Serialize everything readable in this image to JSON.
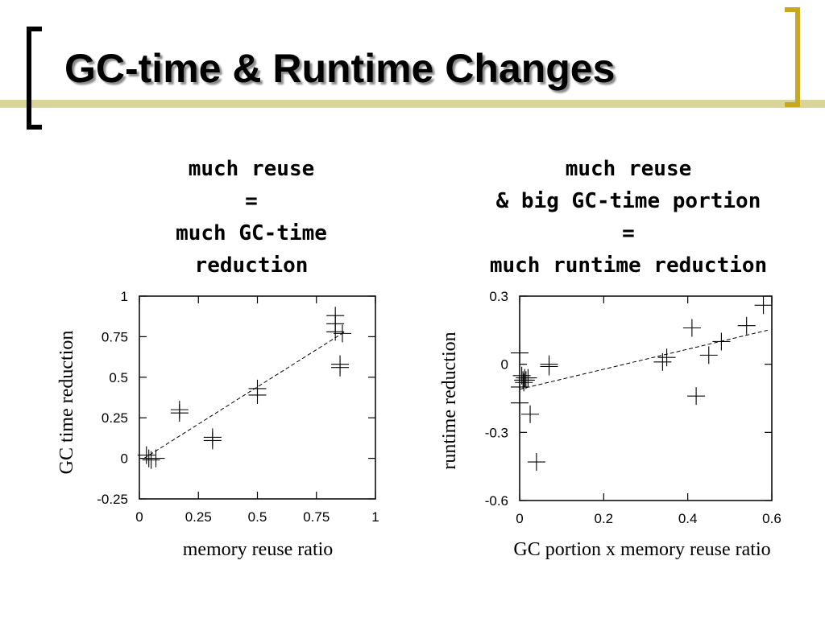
{
  "slide": {
    "title": "GC-time & Runtime Changes",
    "accent_color": "#c8a820",
    "rule_color": "#d8d49a"
  },
  "captions": {
    "left": [
      "much reuse",
      "=",
      "much GC-time",
      "reduction"
    ],
    "right": [
      "much reuse",
      "& big GC-time portion",
      "=",
      "much runtime reduction"
    ]
  },
  "chart_data": [
    {
      "type": "scatter",
      "xlabel": "memory reuse ratio",
      "ylabel": "GC time reduction",
      "xlim": [
        0,
        1
      ],
      "ylim": [
        -0.25,
        1
      ],
      "xticks": [
        0,
        0.25,
        0.5,
        0.75,
        1
      ],
      "xtick_labels": [
        "0",
        "0.25",
        "0.5",
        "0.75",
        "1"
      ],
      "yticks": [
        -0.25,
        0,
        0.25,
        0.5,
        0.75,
        1
      ],
      "ytick_labels": [
        "-0.25",
        "0",
        "0.25",
        "0.5",
        "0.75",
        "1"
      ],
      "points": [
        {
          "x": 0.03,
          "y": 0.02
        },
        {
          "x": 0.04,
          "y": 0.0
        },
        {
          "x": 0.05,
          "y": -0.01
        },
        {
          "x": 0.07,
          "y": 0.0
        },
        {
          "x": 0.17,
          "y": 0.3
        },
        {
          "x": 0.17,
          "y": 0.28
        },
        {
          "x": 0.31,
          "y": 0.13
        },
        {
          "x": 0.31,
          "y": 0.11
        },
        {
          "x": 0.5,
          "y": 0.43
        },
        {
          "x": 0.5,
          "y": 0.39
        },
        {
          "x": 0.83,
          "y": 0.88
        },
        {
          "x": 0.83,
          "y": 0.83
        },
        {
          "x": 0.83,
          "y": 0.78
        },
        {
          "x": 0.86,
          "y": 0.77
        },
        {
          "x": 0.85,
          "y": 0.58
        },
        {
          "x": 0.85,
          "y": 0.56
        }
      ],
      "fit_line": {
        "x": [
          0.02,
          0.87
        ],
        "y": [
          0.0,
          0.78
        ]
      },
      "grid": false,
      "legend": "none"
    },
    {
      "type": "scatter",
      "xlabel": "GC portion x memory reuse ratio",
      "ylabel": "runtime reduction",
      "xlim": [
        0,
        0.6
      ],
      "ylim": [
        -0.6,
        0.3
      ],
      "xticks": [
        0,
        0.2,
        0.4,
        0.6
      ],
      "xtick_labels": [
        "0",
        "0.2",
        "0.4",
        "0.6"
      ],
      "yticks": [
        -0.6,
        -0.3,
        0,
        0.3
      ],
      "ytick_labels": [
        "-0.6",
        "-0.3",
        "0",
        "0.3"
      ],
      "points": [
        {
          "x": 0.0,
          "y": 0.05
        },
        {
          "x": 0.0,
          "y": -0.1
        },
        {
          "x": 0.0,
          "y": -0.17
        },
        {
          "x": 0.005,
          "y": -0.05
        },
        {
          "x": 0.008,
          "y": -0.07
        },
        {
          "x": 0.01,
          "y": -0.08
        },
        {
          "x": 0.012,
          "y": -0.06
        },
        {
          "x": 0.015,
          "y": -0.07
        },
        {
          "x": 0.02,
          "y": -0.06
        },
        {
          "x": 0.025,
          "y": -0.22
        },
        {
          "x": 0.04,
          "y": -0.43
        },
        {
          "x": 0.07,
          "y": 0.0
        },
        {
          "x": 0.07,
          "y": -0.01
        },
        {
          "x": 0.34,
          "y": 0.01
        },
        {
          "x": 0.35,
          "y": 0.03
        },
        {
          "x": 0.41,
          "y": 0.16
        },
        {
          "x": 0.42,
          "y": -0.14
        },
        {
          "x": 0.45,
          "y": 0.04
        },
        {
          "x": 0.48,
          "y": 0.1
        },
        {
          "x": 0.54,
          "y": 0.17
        },
        {
          "x": 0.58,
          "y": 0.26
        }
      ],
      "fit_line": {
        "x": [
          0.0,
          0.59
        ],
        "y": [
          -0.11,
          0.15
        ]
      },
      "grid": false,
      "legend": "none"
    }
  ]
}
